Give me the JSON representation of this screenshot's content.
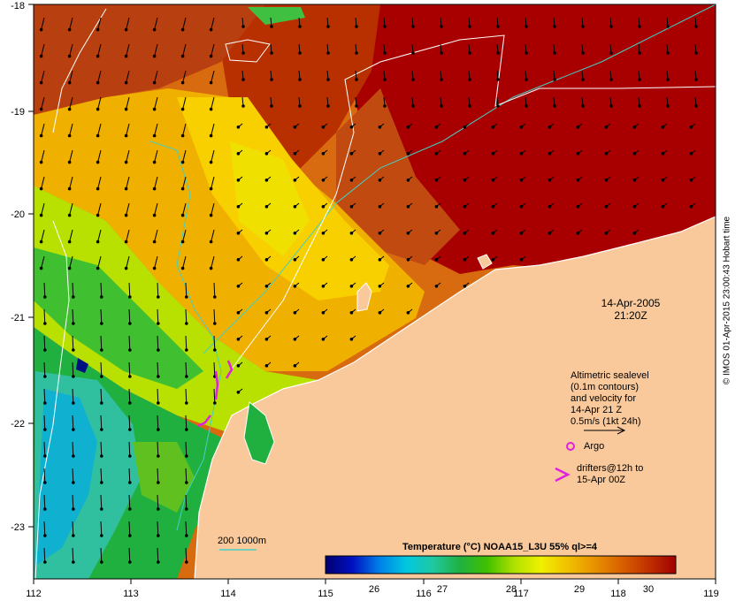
{
  "map": {
    "lon_ticks": [
      "112",
      "113",
      "114",
      "115",
      "116",
      "117",
      "118",
      "119"
    ],
    "lat_ticks": [
      "-18",
      "-19",
      "-20",
      "-21",
      "-22",
      "-23"
    ],
    "date": "14-Apr-2005",
    "time": "21:20Z",
    "colors": {
      "land": "#f9c99b",
      "coast": "#ffffff",
      "contour_200": "#44d0c4",
      "contour_1000": "#ffffff",
      "argo": "#e020e0",
      "drifter": "#e020e0"
    }
  },
  "legend": {
    "sealevel_lines": [
      "Altimetric sealevel",
      "(0.1m contours)",
      "and velocity for",
      "14-Apr 21 Z",
      "0.5m/s (1kt 24h)"
    ],
    "argo_label": "Argo",
    "drifter_lines": [
      "drifters@12h to",
      "15-Apr 00Z"
    ],
    "isobath_label": "200  1000m"
  },
  "colorbar": {
    "title": "Temperature (°C) NOAA15_L3U 55% ql>=4",
    "ticks": [
      "26",
      "27",
      "28",
      "29",
      "30"
    ],
    "stops": [
      "#000070",
      "#0010c0",
      "#0080e8",
      "#00c8e0",
      "#20c8a0",
      "#20b040",
      "#40c000",
      "#b0e000",
      "#f0f000",
      "#f0c000",
      "#e89000",
      "#d86000",
      "#c03000",
      "#a00000"
    ]
  },
  "credit": "© IMOS 01-Apr-2015 23:00:43 Hobart time"
}
